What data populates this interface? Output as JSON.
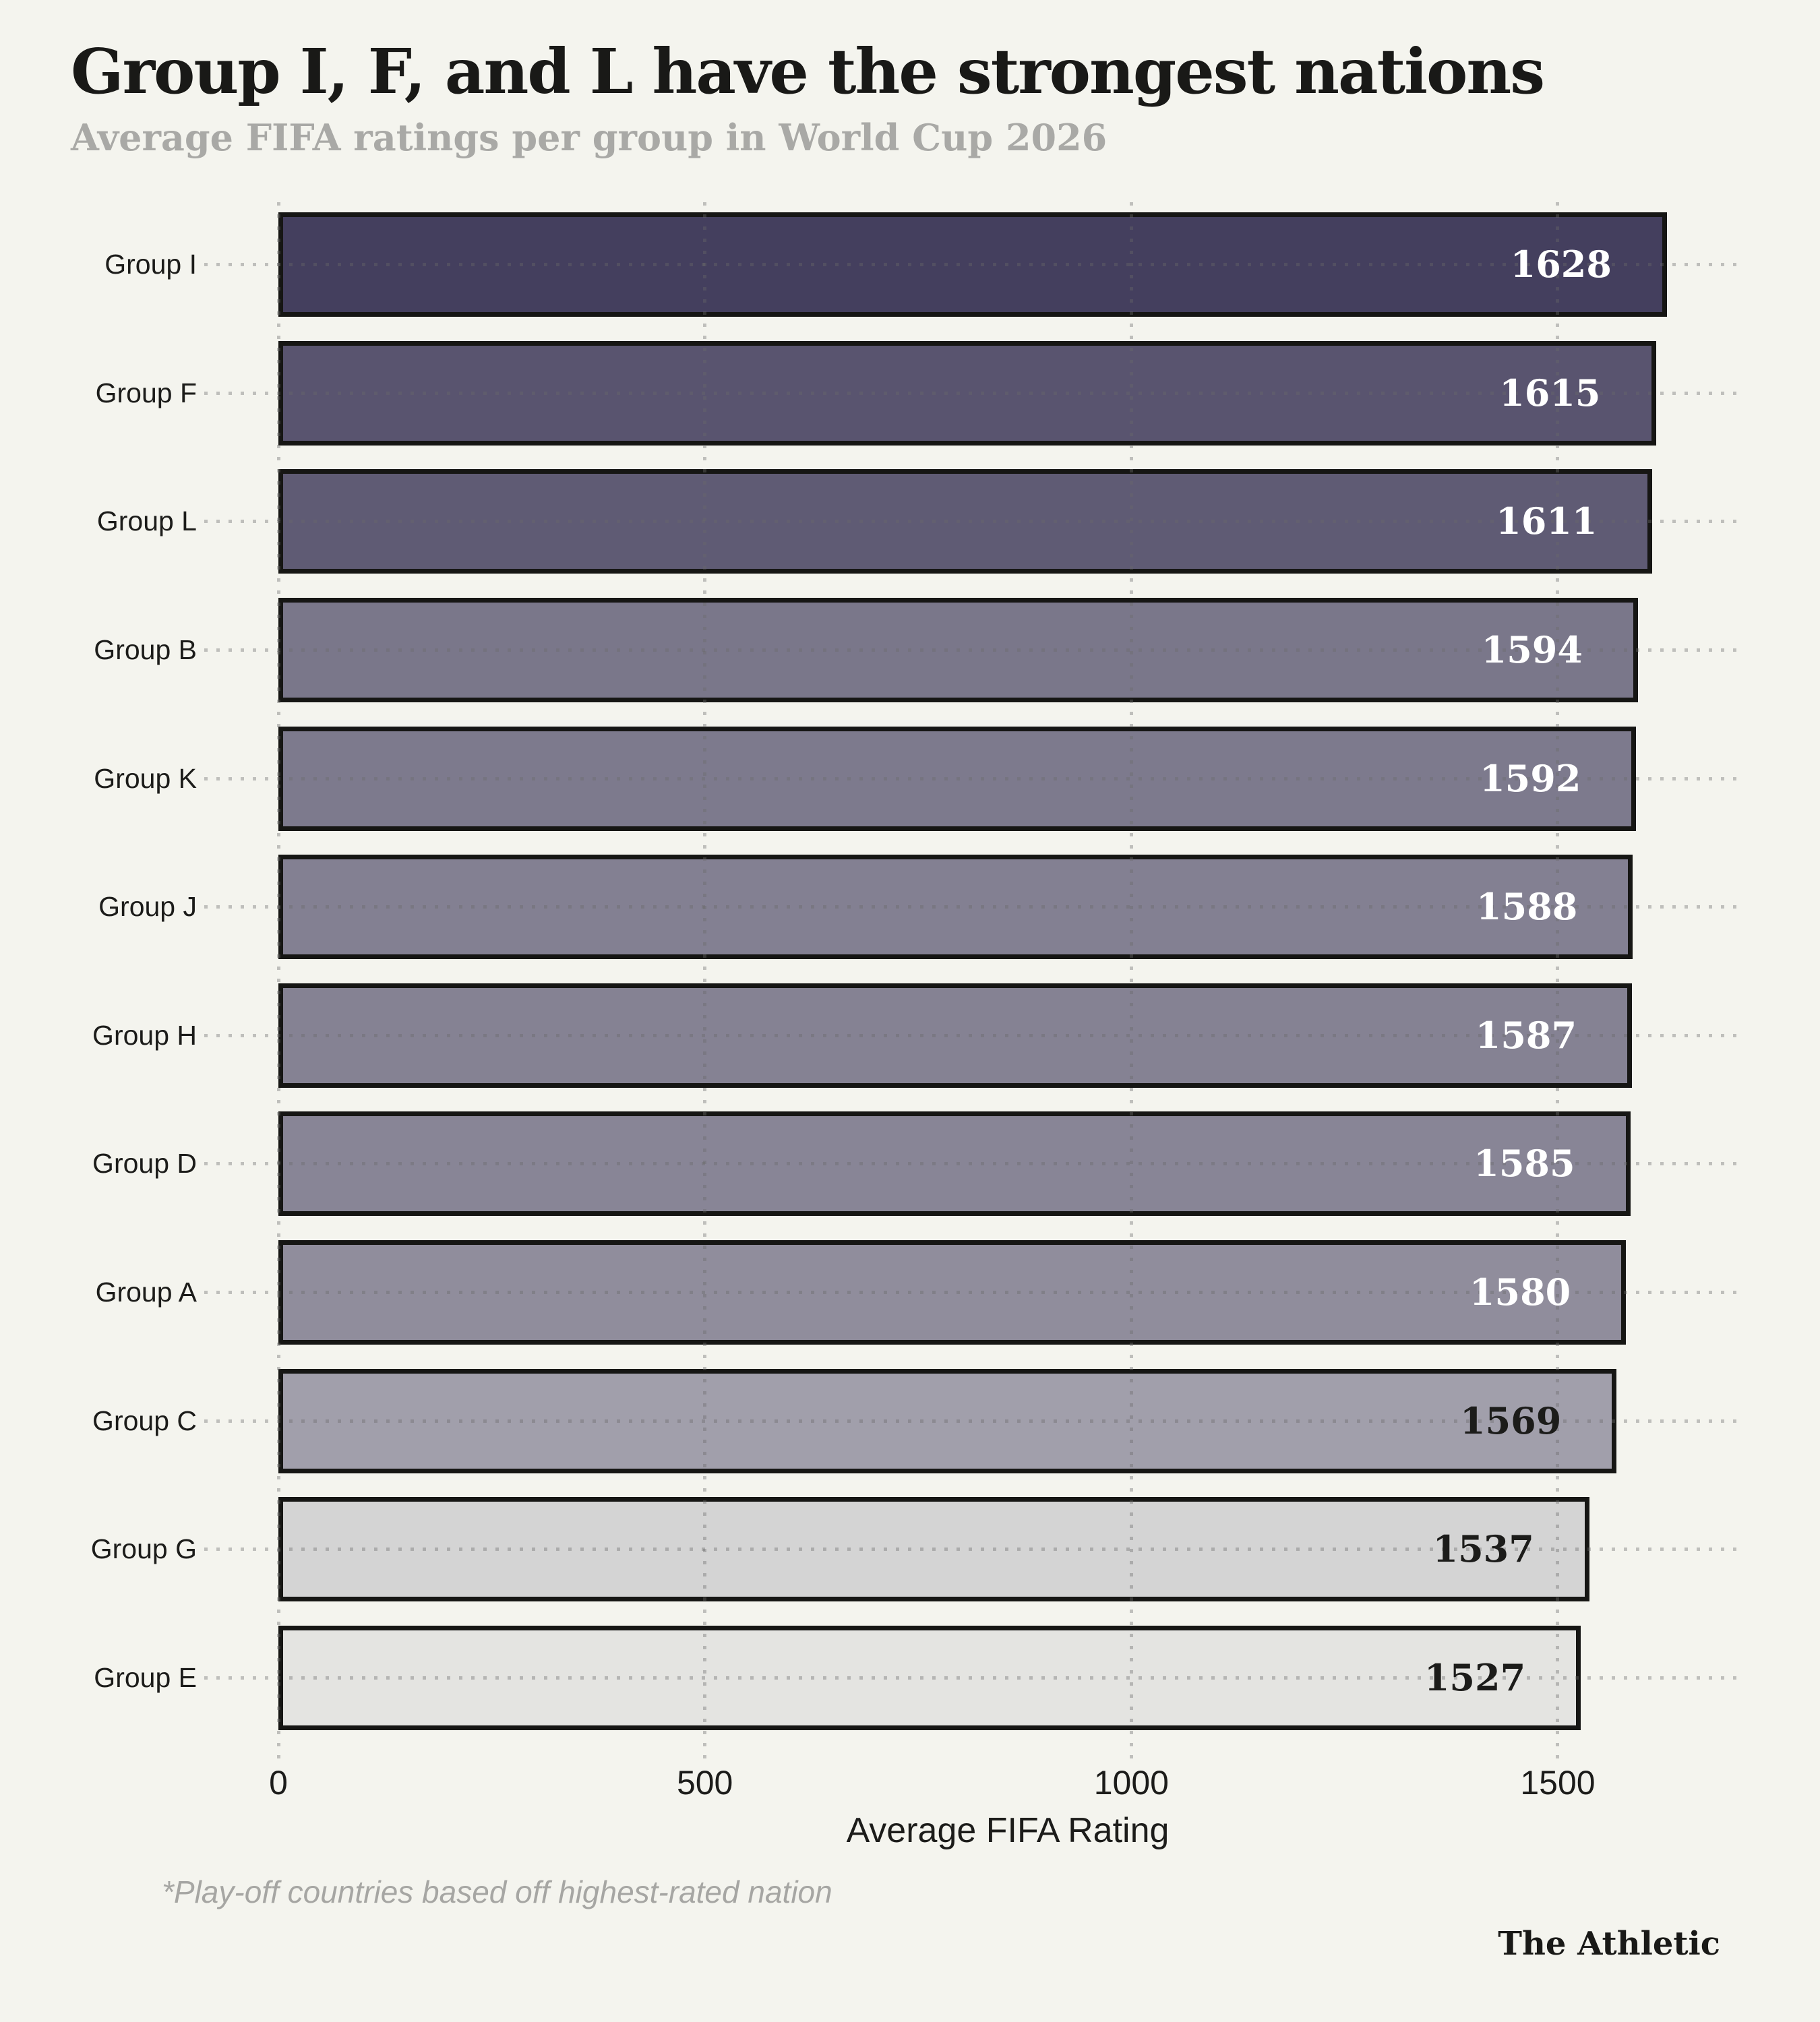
{
  "header": {
    "title": "Group I, F, and L have the strongest nations",
    "subtitle": "Average FIFA ratings per group in World Cup 2026"
  },
  "chart_data": {
    "type": "bar",
    "orientation": "horizontal",
    "title": "Group I, F, and L have the strongest nations",
    "subtitle": "Average FIFA ratings per group in World Cup 2026",
    "categories": [
      "Group I",
      "Group F",
      "Group L",
      "Group B",
      "Group K",
      "Group J",
      "Group H",
      "Group D",
      "Group A",
      "Group C",
      "Group G",
      "Group E"
    ],
    "values": [
      1628,
      1615,
      1611,
      1594,
      1592,
      1588,
      1587,
      1585,
      1580,
      1569,
      1537,
      1527
    ],
    "bar_colors": [
      "#443f5e",
      "#59546f",
      "#5f5b74",
      "#7a778a",
      "#7d7a8d",
      "#838092",
      "#858293",
      "#888596",
      "#908d9c",
      "#a19fab",
      "#d4d4d4",
      "#e4e4e1"
    ],
    "value_label_colors": [
      "#ffffff",
      "#ffffff",
      "#ffffff",
      "#ffffff",
      "#ffffff",
      "#ffffff",
      "#ffffff",
      "#ffffff",
      "#ffffff",
      "#1c1c1a",
      "#1c1c1a",
      "#1c1c1a"
    ],
    "xlabel": "Average FIFA Rating",
    "xticks": [
      0,
      500,
      1000,
      1500
    ],
    "xlim": [
      0,
      1711
    ],
    "grid": "dotted",
    "legend": "none"
  },
  "footnote": "*Play-off countries based off highest-rated nation",
  "brand": "The Athletic",
  "colors": {
    "background": "#f4f4ee",
    "bar_border": "#161614",
    "grid_dots": "#bfbfba",
    "text": "#1c1c1a",
    "muted": "#a9a9a6"
  }
}
